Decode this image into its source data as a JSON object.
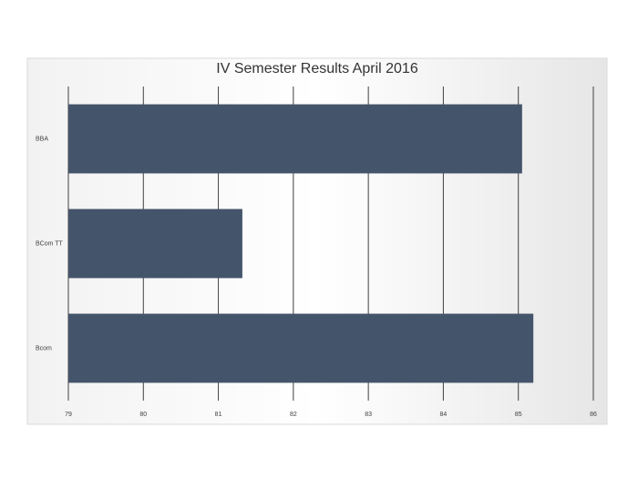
{
  "chart_data": {
    "type": "barh",
    "title": "IV Semester Results April 2016",
    "categories": [
      "BBA",
      "BCom TT",
      "Bcom"
    ],
    "values": [
      85.05,
      81.32,
      85.2
    ],
    "color": "#44546a",
    "xlim": [
      79,
      86
    ],
    "xticks": [
      79,
      80,
      81,
      82,
      83,
      84,
      85,
      86
    ],
    "grid": true
  }
}
